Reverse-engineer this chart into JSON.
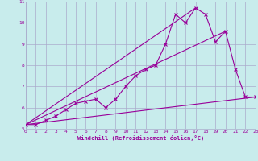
{
  "background_color": "#c8ecec",
  "grid_color": "#aaaacc",
  "line_color": "#990099",
  "xlabel": "Windchill (Refroidissement éolien,°C)",
  "xlim": [
    0,
    23
  ],
  "ylim": [
    5,
    11
  ],
  "yticks": [
    5,
    6,
    7,
    8,
    9,
    10,
    11
  ],
  "xticks": [
    0,
    1,
    2,
    3,
    4,
    5,
    6,
    7,
    8,
    9,
    10,
    11,
    12,
    13,
    14,
    15,
    16,
    17,
    18,
    19,
    20,
    21,
    22,
    23
  ],
  "series_x": [
    0,
    1,
    2,
    3,
    4,
    5,
    6,
    7,
    8,
    9,
    10,
    11,
    12,
    13,
    14,
    15,
    16,
    17,
    18,
    19,
    20,
    21,
    22,
    23
  ],
  "series_y": [
    5.2,
    5.2,
    5.4,
    5.6,
    5.9,
    6.2,
    6.3,
    6.4,
    6.0,
    6.4,
    7.0,
    7.5,
    7.8,
    8.0,
    9.0,
    10.4,
    10.0,
    10.7,
    10.4,
    9.1,
    9.6,
    7.8,
    6.5,
    6.5
  ],
  "line1_x": [
    0,
    23
  ],
  "line1_y": [
    5.2,
    6.5
  ],
  "line2_x": [
    0,
    20
  ],
  "line2_y": [
    5.2,
    9.6
  ],
  "line3_x": [
    0,
    17
  ],
  "line3_y": [
    5.2,
    10.7
  ]
}
